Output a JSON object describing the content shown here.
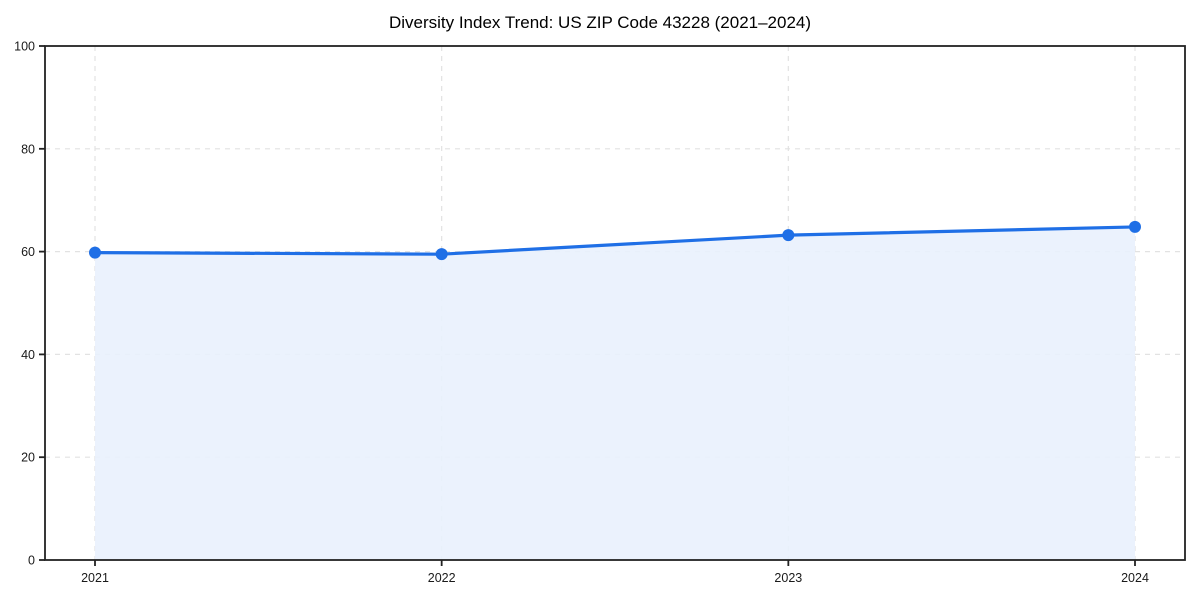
{
  "chart_data": {
    "type": "area",
    "title": "Diversity Index Trend: US ZIP Code 43228 (2021–2024)",
    "categories": [
      "2021",
      "2022",
      "2023",
      "2024"
    ],
    "series": [
      {
        "name": "Diversity Index",
        "values": [
          59.8,
          59.5,
          63.2,
          64.8
        ]
      }
    ],
    "xlabel": "",
    "ylabel": "",
    "ylim": [
      0,
      100
    ],
    "yticks": [
      0,
      20,
      40,
      60,
      80,
      100
    ],
    "grid": "dashed, both axes, at tick positions",
    "legend": "none",
    "colors": {
      "line": "#1f6fe6",
      "marker": "#1f6fe6",
      "fill": "#e9f1fd",
      "grid": "#e2e2e2",
      "axis": "#222222",
      "text": "#1a1a1a",
      "background": "#ffffff"
    }
  }
}
